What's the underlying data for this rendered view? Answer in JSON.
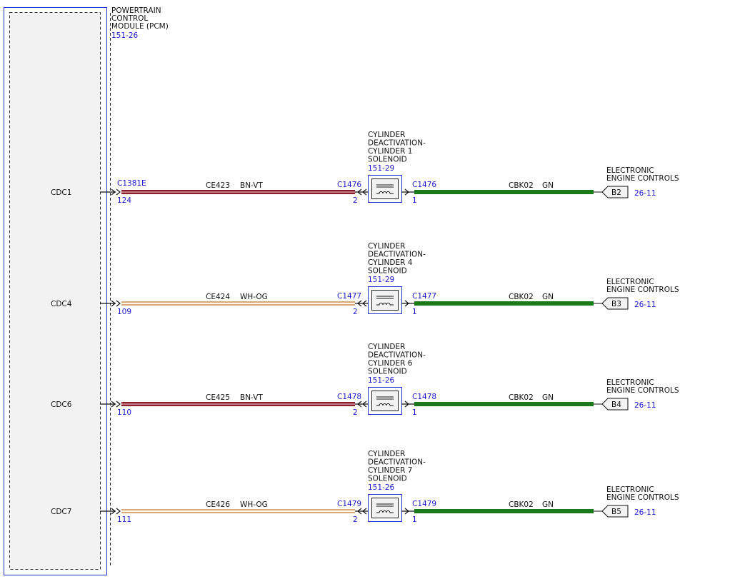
{
  "colors": {
    "module_border": "#2233cc",
    "module_fill": "#f2f2f2",
    "link_text": "#1a1acc",
    "text": "#111111",
    "gn_wire": "#1a7a1a"
  },
  "pcm": {
    "title": [
      "POWERTRAIN",
      "CONTROL",
      "MODULE (PCM)"
    ],
    "ref": "151-26"
  },
  "circuits": [
    {
      "pin_name": "CDC1",
      "pcm_connector": "C1381E",
      "pcm_pin": "124",
      "circuit": "CE423",
      "color_code": "BN-VT",
      "wire_colors": [
        "#8b1f2e",
        "#c47a84",
        "#8b1f2e"
      ],
      "solenoid_name": [
        "CYLINDER",
        "DEACTIVATION-",
        "CYLINDER 1",
        "SOLENOID"
      ],
      "solenoid_ref": "151-29",
      "sol_connector_left": "C1476",
      "sol_pin_left": "2",
      "sol_connector_right": "C1476",
      "sol_pin_right": "1",
      "ground_circuit": "CBK02",
      "ground_color": "GN",
      "dest_name": [
        "ELECTRONIC",
        "ENGINE CONTROLS"
      ],
      "dest_tag": "B2",
      "dest_ref": "26-11"
    },
    {
      "pin_name": "CDC4",
      "pcm_connector": "",
      "pcm_pin": "109",
      "circuit": "CE424",
      "color_code": "WH-OG",
      "wire_colors": [
        "#d8a878",
        "#fff6ea",
        "#d8a878"
      ],
      "solenoid_name": [
        "CYLINDER",
        "DEACTIVATION-",
        "CYLINDER 4",
        "SOLENOID"
      ],
      "solenoid_ref": "151-29",
      "sol_connector_left": "C1477",
      "sol_pin_left": "2",
      "sol_connector_right": "C1477",
      "sol_pin_right": "1",
      "ground_circuit": "CBK02",
      "ground_color": "GN",
      "dest_name": [
        "ELECTRONIC",
        "ENGINE CONTROLS"
      ],
      "dest_tag": "B3",
      "dest_ref": "26-11"
    },
    {
      "pin_name": "CDC6",
      "pcm_connector": "",
      "pcm_pin": "110",
      "circuit": "CE425",
      "color_code": "BN-VT",
      "wire_colors": [
        "#8b1f2e",
        "#c47a84",
        "#8b1f2e"
      ],
      "solenoid_name": [
        "CYLINDER",
        "DEACTIVATION-",
        "CYLINDER 6",
        "SOLENOID"
      ],
      "solenoid_ref": "151-26",
      "sol_connector_left": "C1478",
      "sol_pin_left": "2",
      "sol_connector_right": "C1478",
      "sol_pin_right": "1",
      "ground_circuit": "CBK02",
      "ground_color": "GN",
      "dest_name": [
        "ELECTRONIC",
        "ENGINE CONTROLS"
      ],
      "dest_tag": "B4",
      "dest_ref": "26-11"
    },
    {
      "pin_name": "CDC7",
      "pcm_connector": "",
      "pcm_pin": "111",
      "circuit": "CE426",
      "color_code": "WH-OG",
      "wire_colors": [
        "#d8a878",
        "#fff6ea",
        "#d8a878"
      ],
      "solenoid_name": [
        "CYLINDER",
        "DEACTIVATION-",
        "CYLINDER 7",
        "SOLENOID"
      ],
      "solenoid_ref": "151-26",
      "sol_connector_left": "C1479",
      "sol_pin_left": "2",
      "sol_connector_right": "C1479",
      "sol_pin_right": "1",
      "ground_circuit": "CBK02",
      "ground_color": "GN",
      "dest_name": [
        "ELECTRONIC",
        "ENGINE CONTROLS"
      ],
      "dest_tag": "B5",
      "dest_ref": "26-11"
    }
  ]
}
